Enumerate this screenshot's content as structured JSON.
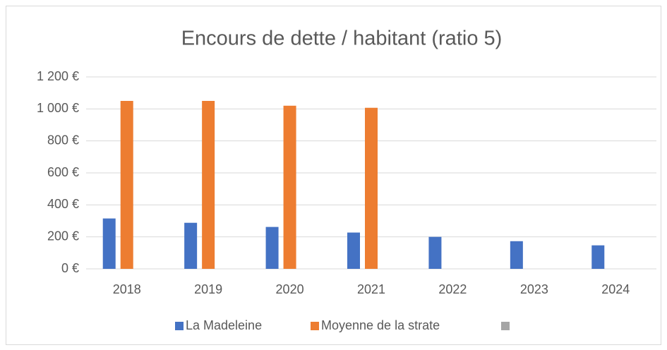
{
  "chart_data": {
    "type": "bar",
    "title": "Encours de dette / habitant (ratio 5)",
    "categories": [
      "2018",
      "2019",
      "2020",
      "2021",
      "2022",
      "2023",
      "2024"
    ],
    "series": [
      {
        "name": "La Madeleine",
        "color": "#4472c4",
        "values": [
          315,
          288,
          262,
          227,
          200,
          173,
          147
        ]
      },
      {
        "name": "Moyenne de la strate",
        "color": "#ed7d31",
        "values": [
          1050,
          1050,
          1020,
          1007,
          null,
          null,
          null
        ]
      },
      {
        "color": "#a5a5a5",
        "values": [
          null,
          null,
          null,
          null,
          null,
          null,
          null
        ]
      }
    ],
    "ylim": [
      0,
      1200
    ],
    "yticks": [
      {
        "value": 0,
        "label": "0 €"
      },
      {
        "value": 200,
        "label": "200 €"
      },
      {
        "value": 400,
        "label": "400 €"
      },
      {
        "value": 600,
        "label": "600 €"
      },
      {
        "value": 800,
        "label": "800 €"
      },
      {
        "value": 1000,
        "label": "1 000 €"
      },
      {
        "value": 1200,
        "label": "1 200 €"
      }
    ],
    "grid": true,
    "legend": "bottom"
  }
}
